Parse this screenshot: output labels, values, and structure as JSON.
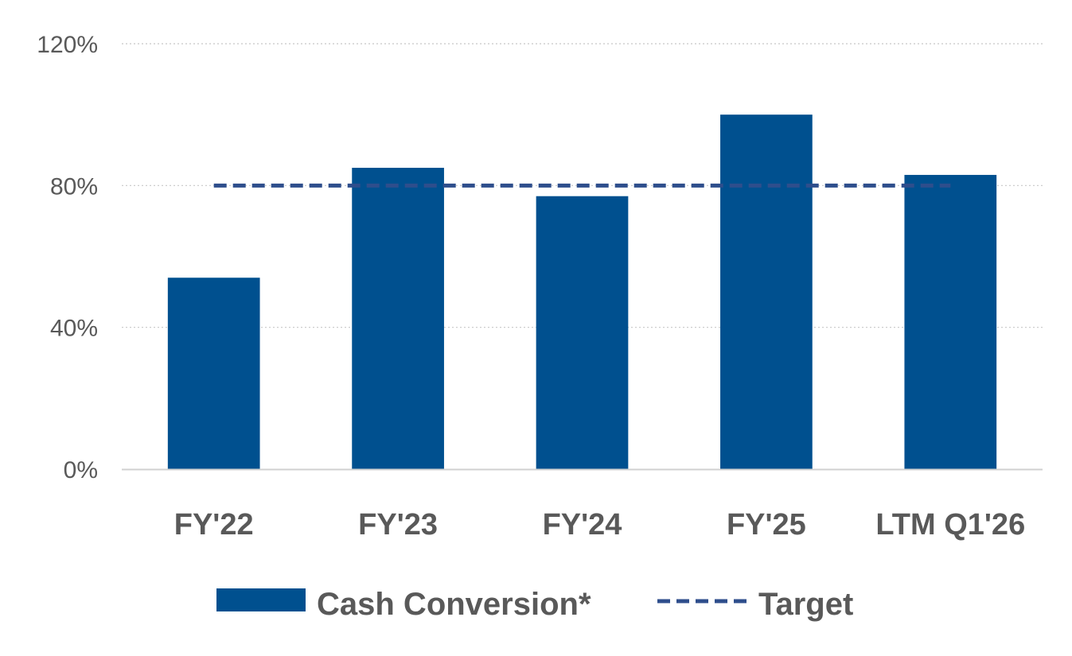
{
  "chart_data": {
    "type": "bar",
    "categories": [
      "FY'22",
      "FY'23",
      "FY'24",
      "FY'25",
      "LTM Q1'26"
    ],
    "series": [
      {
        "name": "Cash Conversion*",
        "type": "bar",
        "values": [
          54,
          85,
          77,
          100,
          83
        ],
        "color": "#00508F"
      },
      {
        "name": "Target",
        "type": "line",
        "style": "dashed",
        "values": [
          80,
          80,
          80,
          80,
          80
        ],
        "color": "#2E4E8C"
      }
    ],
    "y_ticks": [
      "0%",
      "40%",
      "80%",
      "120%"
    ],
    "y_tick_values": [
      0,
      40,
      80,
      120
    ],
    "ylim": [
      0,
      120
    ],
    "grid": "horizontal dotted",
    "legend_position": "bottom",
    "colors": {
      "bar": "#00508F",
      "target": "#2E4E8C",
      "text": "#595959",
      "grid": "#C8C8C8",
      "axis": "#D0D0D0"
    }
  }
}
